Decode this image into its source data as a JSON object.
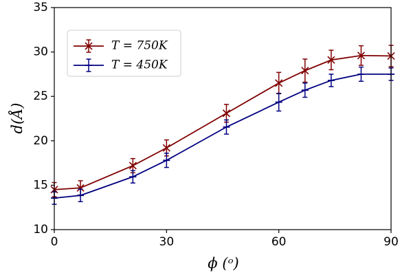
{
  "chart_data": {
    "type": "line",
    "title": "",
    "xlabel": "ϕ (ᵒ)",
    "ylabel": "d(Å)",
    "xlim": [
      0,
      90
    ],
    "ylim": [
      10,
      35
    ],
    "x_ticks": [
      0,
      30,
      60,
      90
    ],
    "y_ticks": [
      10,
      15,
      20,
      25,
      30,
      35
    ],
    "grid": false,
    "legend_position": "upper-left",
    "series": [
      {
        "name": "T = 750K",
        "color": "#800000",
        "marker": "x",
        "x": [
          0,
          7,
          21,
          30,
          46,
          60,
          67,
          74,
          82,
          90
        ],
        "y": [
          14.5,
          14.7,
          17.2,
          19.2,
          23.1,
          26.5,
          27.9,
          29.1,
          29.6,
          29.55
        ],
        "err": [
          0.8,
          0.8,
          0.8,
          0.9,
          1.0,
          1.2,
          1.3,
          1.1,
          1.1,
          1.2
        ]
      },
      {
        "name": "T = 450K",
        "color": "#000080",
        "marker": "_",
        "x": [
          0,
          7,
          21,
          30,
          46,
          60,
          67,
          74,
          82,
          90
        ],
        "y": [
          13.55,
          13.85,
          15.95,
          17.8,
          21.55,
          24.35,
          25.7,
          26.8,
          27.5,
          27.5
        ],
        "err": [
          0.7,
          0.7,
          0.7,
          0.8,
          0.8,
          1.0,
          0.8,
          0.7,
          0.8,
          0.7
        ]
      }
    ]
  }
}
